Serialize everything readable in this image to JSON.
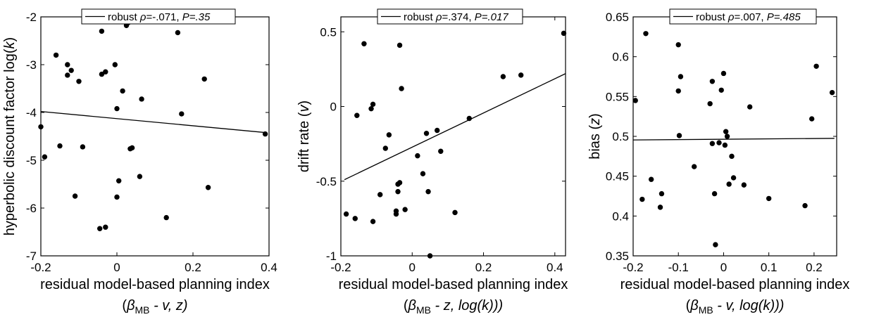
{
  "chart_data": [
    {
      "type": "scatter",
      "legend_position": "top",
      "legend": {
        "prefix": "robust ",
        "rho_sym": "ρ",
        "rho_val": "=-.071, ",
        "p_text": "P=.35"
      },
      "xlabel": "residual model-based planning index",
      "xlabel2": {
        "open": "(",
        "beta": "β",
        "sub": "MB",
        "rest": " - v, z)"
      },
      "ylabel": {
        "main": "hyperbolic discount factor log(",
        "k": "k",
        "close": ")"
      },
      "xlim": [
        -0.2,
        0.4
      ],
      "ylim": [
        -7,
        -2
      ],
      "xticks": [
        -0.2,
        0,
        0.2,
        0.4
      ],
      "xtick_labels": [
        "-0.2",
        "0",
        "0.2",
        "0.4"
      ],
      "yticks": [
        -7,
        -6,
        -5,
        -4,
        -3,
        -2
      ],
      "ytick_labels": [
        "-7",
        "-6",
        "-5",
        "-4",
        "-3",
        "-2"
      ],
      "fit_line": {
        "x": [
          -0.2,
          0.39
        ],
        "y": [
          -3.98,
          -4.42
        ]
      },
      "points": [
        [
          -0.2,
          -4.3
        ],
        [
          -0.19,
          -4.93
        ],
        [
          -0.16,
          -2.8
        ],
        [
          -0.15,
          -4.7
        ],
        [
          -0.13,
          -3.0
        ],
        [
          -0.13,
          -3.22
        ],
        [
          -0.12,
          -3.12
        ],
        [
          -0.11,
          -5.75
        ],
        [
          -0.1,
          -3.35
        ],
        [
          -0.09,
          -4.72
        ],
        [
          -0.04,
          -3.2
        ],
        [
          -0.04,
          -2.3
        ],
        [
          -0.03,
          -3.15
        ],
        [
          -0.03,
          -6.4
        ],
        [
          -0.045,
          -6.43
        ],
        [
          -0.005,
          -3.0
        ],
        [
          0.0,
          -3.92
        ],
        [
          0.0,
          -5.77
        ],
        [
          0.005,
          -5.43
        ],
        [
          0.015,
          -3.55
        ],
        [
          0.025,
          -2.18
        ],
        [
          0.03,
          -2.12
        ],
        [
          0.035,
          -4.76
        ],
        [
          0.04,
          -4.74
        ],
        [
          0.06,
          -5.34
        ],
        [
          0.065,
          -3.72
        ],
        [
          0.13,
          -6.2
        ],
        [
          0.16,
          -2.33
        ],
        [
          0.17,
          -4.03
        ],
        [
          0.23,
          -3.3
        ],
        [
          0.24,
          -5.57
        ],
        [
          0.39,
          -4.45
        ]
      ]
    },
    {
      "type": "scatter",
      "legend_position": "top",
      "legend": {
        "prefix": "robust ",
        "rho_sym": "ρ",
        "rho_val": "=.374, ",
        "p_text": "P=.017"
      },
      "xlabel": "residual model-based planning index",
      "xlabel2": {
        "open": "(",
        "beta": "β",
        "sub": "MB",
        "rest": " - z, log(k)))"
      },
      "ylabel": {
        "main": "drift rate (",
        "k": "v",
        "close": ")"
      },
      "xlim": [
        -0.2,
        0.43
      ],
      "ylim": [
        -1,
        0.6
      ],
      "xticks": [
        -0.2,
        0,
        0.2,
        0.4
      ],
      "xtick_labels": [
        "-0.2",
        "0",
        "0.2",
        "0.4"
      ],
      "yticks": [
        -1,
        -0.5,
        0,
        0.5
      ],
      "ytick_labels": [
        "-1",
        "-0.5",
        "0",
        "0.5"
      ],
      "fit_line": {
        "x": [
          -0.19,
          0.43
        ],
        "y": [
          -0.49,
          0.22
        ]
      },
      "points": [
        [
          -0.185,
          -0.72
        ],
        [
          -0.16,
          -0.75
        ],
        [
          -0.155,
          -0.06
        ],
        [
          -0.135,
          0.42
        ],
        [
          -0.115,
          -0.015
        ],
        [
          -0.11,
          0.015
        ],
        [
          -0.11,
          -0.77
        ],
        [
          -0.09,
          -0.59
        ],
        [
          -0.075,
          -0.28
        ],
        [
          -0.065,
          -0.19
        ],
        [
          -0.045,
          -0.72
        ],
        [
          -0.045,
          -0.7
        ],
        [
          -0.04,
          -0.52
        ],
        [
          -0.04,
          -0.57
        ],
        [
          -0.035,
          -0.51
        ],
        [
          -0.035,
          0.41
        ],
        [
          -0.03,
          0.12
        ],
        [
          -0.02,
          -0.69
        ],
        [
          0.015,
          -0.33
        ],
        [
          0.03,
          -0.45
        ],
        [
          0.04,
          -0.18
        ],
        [
          0.045,
          -0.57
        ],
        [
          0.05,
          0.58
        ],
        [
          0.05,
          -1.0
        ],
        [
          0.07,
          -0.16
        ],
        [
          0.08,
          -0.3
        ],
        [
          0.12,
          -0.71
        ],
        [
          0.16,
          -0.08
        ],
        [
          0.255,
          0.2
        ],
        [
          0.305,
          0.21
        ],
        [
          0.425,
          0.49
        ]
      ]
    },
    {
      "type": "scatter",
      "legend_position": "top",
      "legend": {
        "prefix": "robust ",
        "rho_sym": "ρ",
        "rho_val": "=.007, ",
        "p_text": "P=.485"
      },
      "xlabel": "residual model-based planning index",
      "xlabel2": {
        "open": "(",
        "beta": "β",
        "sub": "MB",
        "rest": " - v, log(k)))"
      },
      "ylabel": {
        "main": "bias (",
        "k": "z",
        "close": ")"
      },
      "xlim": [
        -0.2,
        0.25
      ],
      "ylim": [
        0.35,
        0.65
      ],
      "xticks": [
        -0.2,
        -0.1,
        0,
        0.1,
        0.2
      ],
      "xtick_labels": [
        "-0.2",
        "-0.1",
        "0",
        "0.1",
        "0.2"
      ],
      "yticks": [
        0.35,
        0.4,
        0.45,
        0.5,
        0.55,
        0.6,
        0.65
      ],
      "ytick_labels": [
        "0.35",
        "0.4",
        "0.45",
        "0.5",
        "0.55",
        "0.6",
        "0.65"
      ],
      "fit_line": {
        "x": [
          -0.2,
          0.245
        ],
        "y": [
          0.4955,
          0.4975
        ]
      },
      "points": [
        [
          -0.195,
          0.545
        ],
        [
          -0.18,
          0.421
        ],
        [
          -0.172,
          0.629
        ],
        [
          -0.16,
          0.446
        ],
        [
          -0.14,
          0.411
        ],
        [
          -0.137,
          0.428
        ],
        [
          -0.1,
          0.615
        ],
        [
          -0.1,
          0.557
        ],
        [
          -0.098,
          0.501
        ],
        [
          -0.095,
          0.575
        ],
        [
          -0.065,
          0.462
        ],
        [
          -0.03,
          0.541
        ],
        [
          -0.025,
          0.569
        ],
        [
          -0.025,
          0.491
        ],
        [
          -0.02,
          0.428
        ],
        [
          -0.018,
          0.364
        ],
        [
          -0.01,
          0.492
        ],
        [
          -0.005,
          0.558
        ],
        [
          0.0,
          0.579
        ],
        [
          0.003,
          0.489
        ],
        [
          0.005,
          0.506
        ],
        [
          0.008,
          0.5
        ],
        [
          0.012,
          0.44
        ],
        [
          0.018,
          0.475
        ],
        [
          0.022,
          0.448
        ],
        [
          0.045,
          0.439
        ],
        [
          0.058,
          0.537
        ],
        [
          0.1,
          0.422
        ],
        [
          0.18,
          0.413
        ],
        [
          0.195,
          0.522
        ],
        [
          0.205,
          0.588
        ],
        [
          0.24,
          0.555
        ]
      ]
    }
  ]
}
